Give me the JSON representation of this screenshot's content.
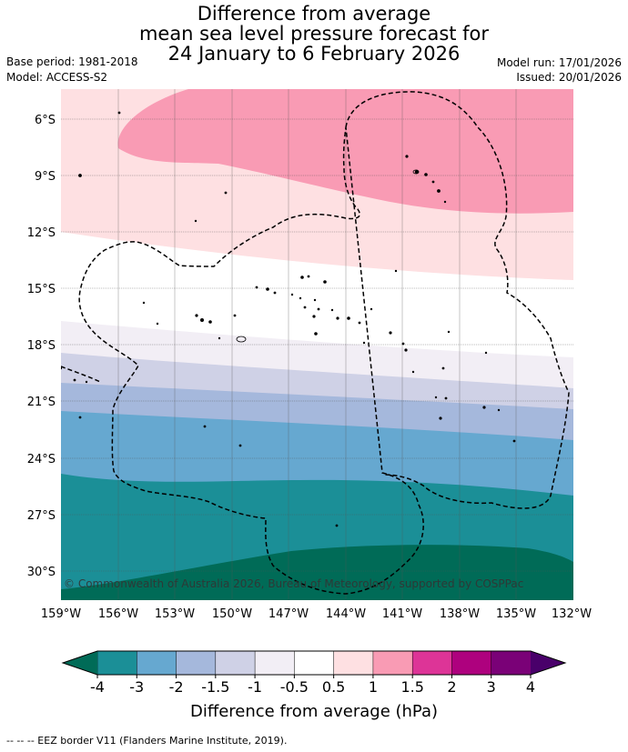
{
  "header": {
    "title_line1": "Difference from average",
    "title_line2": "mean sea level pressure forecast for",
    "title_line3": "24 January to 6 February 2026",
    "base_period": "Base period: 1981-2018",
    "model": "Model: ACCESS-S2",
    "model_run": "Model run: 17/01/2026",
    "issued": "Issued: 20/01/2026"
  },
  "map": {
    "lat_labels": [
      "6°S",
      "9°S",
      "12°S",
      "15°S",
      "18°S",
      "21°S",
      "24°S",
      "27°S",
      "30°S"
    ],
    "lon_labels": [
      "159°W",
      "156°W",
      "153°W",
      "150°W",
      "147°W",
      "144°W",
      "141°W",
      "138°W",
      "135°W",
      "132°W"
    ],
    "copyright": "© Commonwealth of Australia 2026, Bureau of Meteorology, supported by COSPPac"
  },
  "colorbar": {
    "ticks": [
      "-4",
      "-3",
      "-2",
      "-1.5",
      "-1",
      "-0.5",
      "0.5",
      "1",
      "1.5",
      "2",
      "3",
      "4"
    ],
    "colors": [
      "#1b8f97",
      "#66a8d0",
      "#a5b8dc",
      "#cfd1e6",
      "#f2eef5",
      "#ffffff",
      "#fee0e2",
      "#f99bb4",
      "#dd3497",
      "#ae017e",
      "#7a0177"
    ],
    "low_extend_color": "#006b57",
    "high_extend_color": "#49006a",
    "label": "Difference from average (hPa)"
  },
  "footer": {
    "legend": "-- -- -- EEZ border V11 (Flanders Marine Institute, 2019)."
  }
}
